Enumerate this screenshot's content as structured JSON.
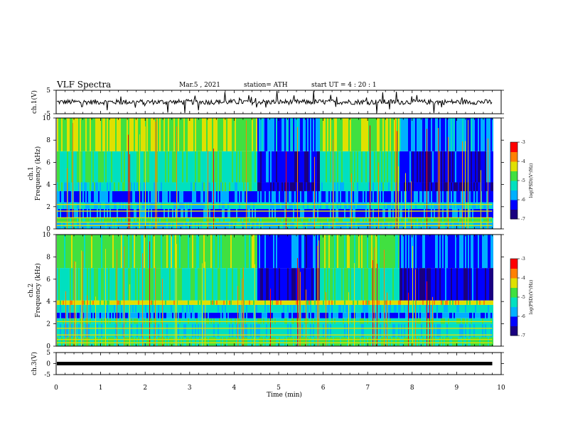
{
  "header": {
    "title": "VLF Spectra",
    "date": "Mar.5  , 2021",
    "station": "station= ATH",
    "start": "start  UT  =   4 : 20 : 1"
  },
  "chart_data": [
    {
      "type": "line",
      "name": "ch1-waveform",
      "ylabel": "ch.1(V)",
      "ylim": [
        -5,
        5
      ],
      "yticks": [
        "5",
        "-5"
      ],
      "xlim": [
        0,
        10
      ],
      "trace_level": 0,
      "end_min": 9.8
    },
    {
      "type": "heatmap",
      "name": "ch1-spectrogram",
      "ylabel": "ch.1 Frequency (kHz)",
      "ylim": [
        0,
        10
      ],
      "yticks": [
        "0",
        "2",
        "4",
        "6",
        "8",
        "10"
      ],
      "xlim": [
        0,
        10
      ],
      "end_min": 9.8,
      "quiet_intervals_min": [
        [
          4.5,
          5.9
        ],
        [
          7.7,
          9.8
        ]
      ],
      "colorbar": {
        "label": "log(PSD)(V²/Hz)",
        "range": [
          -7,
          -3
        ],
        "ticks": [
          "-3",
          "-4",
          "-5",
          "-6",
          "-7"
        ]
      }
    },
    {
      "type": "heatmap",
      "name": "ch2-spectrogram",
      "ylabel": "ch.2 Frequency (kHz)",
      "ylim": [
        0,
        10
      ],
      "yticks": [
        "0",
        "2",
        "4",
        "6",
        "8",
        "10"
      ],
      "xlim": [
        0,
        10
      ],
      "end_min": 9.8,
      "quiet_intervals_min": [
        [
          4.5,
          5.9
        ],
        [
          7.7,
          9.8
        ]
      ],
      "colorbar": {
        "label": "log(PSD)(V²/Hz)",
        "range": [
          -7,
          -3
        ],
        "ticks": [
          "-3",
          "-4",
          "-5",
          "-6",
          "-7"
        ]
      }
    },
    {
      "type": "line",
      "name": "ch3-waveform",
      "ylabel": "ch.3(V)",
      "ylim": [
        -5,
        5
      ],
      "yticks": [
        "5",
        "0",
        "-5"
      ],
      "xlim": [
        0,
        10
      ],
      "trace_level": 0,
      "end_min": 9.8
    }
  ],
  "xaxis": {
    "label": "Time  (min)",
    "ticks": [
      "0",
      "1",
      "2",
      "3",
      "4",
      "5",
      "6",
      "7",
      "8",
      "9",
      "10"
    ]
  },
  "colormap": [
    "#1a0080",
    "#0000ff",
    "#00b0ff",
    "#00e0c0",
    "#40e040",
    "#e0e000",
    "#ff8000",
    "#ff0000",
    "#ffffff"
  ]
}
